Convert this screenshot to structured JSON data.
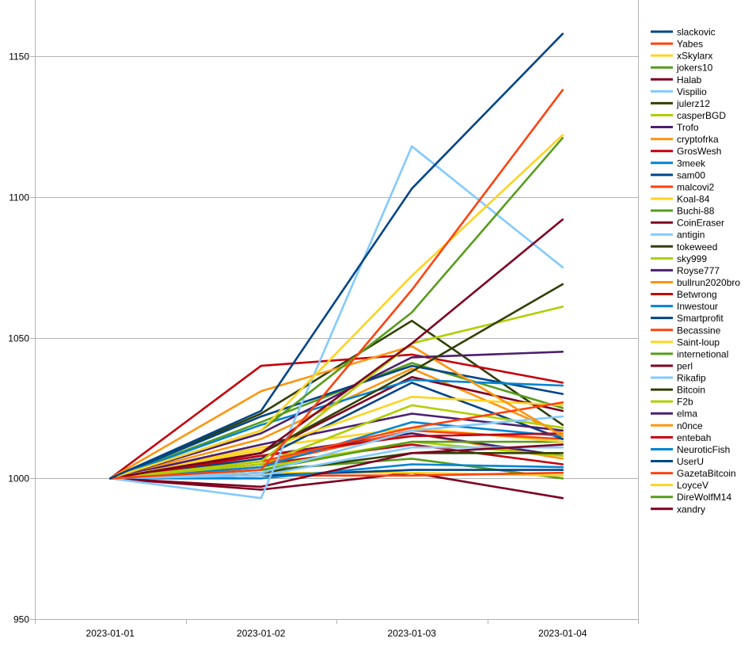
{
  "chart_data": {
    "type": "line",
    "title": "",
    "xlabel": "",
    "ylabel": "",
    "x": [
      "2023-01-01",
      "2023-01-02",
      "2023-01-03",
      "2023-01-04"
    ],
    "ylim": [
      950,
      1170
    ],
    "yticks": [
      950,
      1000,
      1050,
      1100,
      1150
    ],
    "grid": "horizontal",
    "legend_position": "right",
    "series": [
      {
        "name": "slackovic",
        "color": "#004586",
        "values": [
          1000,
          1024,
          1103,
          1158
        ]
      },
      {
        "name": "Yabes",
        "color": "#ff420e",
        "values": [
          1000,
          1003,
          1067,
          1138
        ]
      },
      {
        "name": "xSkylarx",
        "color": "#ffd320",
        "values": [
          1000,
          1017,
          1072,
          1122
        ]
      },
      {
        "name": "jokers10",
        "color": "#579d1c",
        "values": [
          1000,
          1017,
          1059,
          1121
        ]
      },
      {
        "name": "Halab",
        "color": "#7e0021",
        "values": [
          1000,
          1009,
          1048,
          1092
        ]
      },
      {
        "name": "Vispilio",
        "color": "#83caff",
        "values": [
          1000,
          993,
          1118,
          1075
        ]
      },
      {
        "name": "julerz12",
        "color": "#314004",
        "values": [
          1000,
          1009,
          1038,
          1069
        ]
      },
      {
        "name": "casperBGD",
        "color": "#aecf00",
        "values": [
          1000,
          1006,
          1048,
          1061
        ]
      },
      {
        "name": "Trofo",
        "color": "#4b1f6f",
        "values": [
          1000,
          1016,
          1043,
          1045
        ]
      },
      {
        "name": "cryptofrka",
        "color": "#ff950e",
        "values": [
          1000,
          1031,
          1047,
          1015
        ]
      },
      {
        "name": "GrosWesh",
        "color": "#c5000b",
        "values": [
          1000,
          1040,
          1044,
          1034
        ]
      },
      {
        "name": "3meek",
        "color": "#0084d1",
        "values": [
          1000,
          1019,
          1035,
          1033
        ]
      },
      {
        "name": "sam00",
        "color": "#004586",
        "values": [
          1000,
          1022,
          1040,
          1030
        ]
      },
      {
        "name": "malcovi2",
        "color": "#ff420e",
        "values": [
          1000,
          1006,
          1018,
          1027
        ]
      },
      {
        "name": "Koal-84",
        "color": "#ffd320",
        "values": [
          1000,
          1010,
          1029,
          1026
        ]
      },
      {
        "name": "Buchi-88",
        "color": "#579d1c",
        "values": [
          1000,
          1020,
          1041,
          1025
        ]
      },
      {
        "name": "CoinEraser",
        "color": "#7e0021",
        "values": [
          1000,
          1009,
          1036,
          1024
        ]
      },
      {
        "name": "antigin",
        "color": "#83caff",
        "values": [
          1000,
          1002,
          1017,
          1022
        ]
      },
      {
        "name": "tokeweed",
        "color": "#314004",
        "values": [
          1000,
          1023,
          1056,
          1019
        ]
      },
      {
        "name": "sky999",
        "color": "#aecf00",
        "values": [
          1000,
          1005,
          1026,
          1018
        ]
      },
      {
        "name": "Royse777",
        "color": "#4b1f6f",
        "values": [
          1000,
          1012,
          1023,
          1017
        ]
      },
      {
        "name": "bullrun2020bro",
        "color": "#ff950e",
        "values": [
          1000,
          1014,
          1039,
          1016
        ]
      },
      {
        "name": "Betwrong",
        "color": "#c5000b",
        "values": [
          1000,
          1008,
          1015,
          1016
        ]
      },
      {
        "name": "Inwestour",
        "color": "#0084d1",
        "values": [
          1000,
          1004,
          1020,
          1015
        ]
      },
      {
        "name": "Smartprofit",
        "color": "#004586",
        "values": [
          1000,
          1007,
          1034,
          1014
        ]
      },
      {
        "name": "Becassine",
        "color": "#ff420e",
        "values": [
          1000,
          1005,
          1017,
          1014
        ]
      },
      {
        "name": "Saint-loup",
        "color": "#ffd320",
        "values": [
          1000,
          1011,
          1018,
          1013
        ]
      },
      {
        "name": "internetional",
        "color": "#579d1c",
        "values": [
          1000,
          1003,
          1013,
          1013
        ]
      },
      {
        "name": "perl",
        "color": "#7e0021",
        "values": [
          1000,
          997,
          1009,
          1012
        ]
      },
      {
        "name": "Rikafip",
        "color": "#83caff",
        "values": [
          1000,
          1001,
          1011,
          1011
        ]
      },
      {
        "name": "Bitcoin",
        "color": "#314004",
        "values": [
          1000,
          1002,
          1009,
          1009
        ]
      },
      {
        "name": "F2b",
        "color": "#aecf00",
        "values": [
          1000,
          1004,
          1013,
          1008
        ]
      },
      {
        "name": "elma",
        "color": "#4b1f6f",
        "values": [
          1000,
          1008,
          1016,
          1008
        ]
      },
      {
        "name": "n0nce",
        "color": "#ff950e",
        "values": [
          1000,
          1006,
          1016,
          1007
        ]
      },
      {
        "name": "entebah",
        "color": "#c5000b",
        "values": [
          1000,
          1005,
          1012,
          1005
        ]
      },
      {
        "name": "NeuroticFish",
        "color": "#0084d1",
        "values": [
          1000,
          1000,
          1005,
          1004
        ]
      },
      {
        "name": "UserU",
        "color": "#004586",
        "values": [
          1000,
          1001,
          1003,
          1003
        ]
      },
      {
        "name": "GazetaBitcoin",
        "color": "#ff420e",
        "values": [
          1000,
          1001,
          1001,
          1002
        ]
      },
      {
        "name": "LoyceV",
        "color": "#ffd320",
        "values": [
          1000,
          1002,
          1002,
          1001
        ]
      },
      {
        "name": "DireWolfM14",
        "color": "#579d1c",
        "values": [
          1000,
          1003,
          1007,
          1000
        ]
      },
      {
        "name": "xandry",
        "color": "#7e0021",
        "values": [
          1000,
          996,
          1002,
          993
        ]
      }
    ]
  }
}
